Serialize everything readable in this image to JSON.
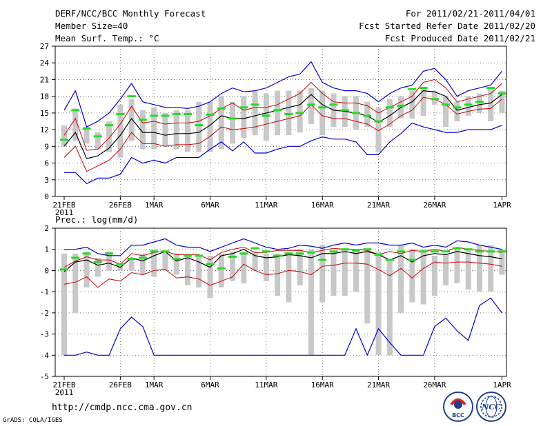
{
  "header": {
    "title": "DERF/NCC/BCC Monthly Forecast",
    "member_size": "Member Size=40",
    "period": "For 2011/02/21-2011/04/01",
    "started": "Fcst Started Refer Date 2011/02/20",
    "produced": "Fcst Produced Date 2011/02/21"
  },
  "footer": {
    "url": "http://cmdp.ncc.cma.gov.cn",
    "grads": "GrADS: COLA/IGES",
    "logo_left_text": "BCC",
    "logo_right_text": "NCC"
  },
  "colors": {
    "max_min": "#0000cc",
    "spread": "#cc0000",
    "mean": "#000000",
    "median": "#22dd22",
    "box": "#c8c8c8"
  },
  "chart_data": [
    {
      "type": "line",
      "title": "Mean Surf. Temp.: °C",
      "ylim": [
        0,
        27
      ],
      "yticks": [
        "0",
        "3",
        "6",
        "9",
        "12",
        "15",
        "18",
        "21",
        "24",
        "27"
      ],
      "x": [
        1,
        2,
        3,
        4,
        5,
        6,
        7,
        8,
        9,
        10,
        11,
        12,
        13,
        14,
        15,
        16,
        17,
        18,
        19,
        20,
        21,
        22,
        23,
        24,
        25,
        26,
        27,
        28,
        29,
        30,
        31,
        32,
        33,
        34,
        35,
        36,
        37,
        38,
        39,
        40
      ],
      "xtick_labels": [
        {
          "day": 1,
          "label": "21FEB",
          "sub": "2011"
        },
        {
          "day": 6,
          "label": "26FEB"
        },
        {
          "day": 9,
          "label": "1MAR"
        },
        {
          "day": 14,
          "label": "6MAR"
        },
        {
          "day": 19,
          "label": "11MAR"
        },
        {
          "day": 24,
          "label": "16MAR"
        },
        {
          "day": 29,
          "label": "21MAR"
        },
        {
          "day": 34,
          "label": "26MAR"
        },
        {
          "day": 40,
          "label": "1APR"
        }
      ],
      "series": [
        {
          "name": "max",
          "values": [
            15.5,
            19,
            12.5,
            13.5,
            15,
            17.5,
            20.3,
            17,
            16.5,
            16,
            16,
            15.8,
            16.2,
            17,
            18.5,
            19.5,
            18.8,
            19,
            19.5,
            20.5,
            21.5,
            22,
            24.2,
            20.5,
            19.5,
            19,
            19,
            18.5,
            17,
            18.5,
            19.5,
            20,
            22.5,
            23,
            21,
            18,
            19,
            19.5,
            20,
            22.5
          ]
        },
        {
          "name": "mean_plus_sd",
          "values": [
            11,
            14,
            8.3,
            8.5,
            10.5,
            13,
            16.2,
            13.2,
            13.5,
            13,
            13.2,
            13.2,
            13.5,
            14.5,
            15.8,
            16.8,
            15.5,
            16,
            16,
            16.5,
            17.5,
            18.5,
            20.5,
            18.5,
            17,
            16.8,
            16.8,
            16.3,
            15,
            16,
            17,
            18,
            20.5,
            21,
            19.5,
            17,
            17.5,
            18,
            18.5,
            20.3
          ]
        },
        {
          "name": "mean",
          "values": [
            9,
            11.5,
            6.8,
            7.3,
            8.7,
            11,
            14,
            11.5,
            11.5,
            11,
            11.3,
            11.3,
            11.5,
            12.8,
            14.5,
            14,
            14,
            14.5,
            15,
            15.5,
            16,
            16.5,
            18.3,
            16.5,
            15.5,
            15.3,
            15,
            14.5,
            13.3,
            14.5,
            16,
            17,
            19,
            18.8,
            18,
            15.5,
            16,
            16.5,
            16.8,
            18.3
          ]
        },
        {
          "name": "mean_minus_sd",
          "values": [
            7,
            9,
            4.5,
            5.5,
            6.5,
            8.5,
            11.5,
            9.5,
            9.5,
            9,
            9.3,
            9.3,
            9.5,
            10.8,
            12.5,
            12,
            12.2,
            12.5,
            13,
            13.5,
            14,
            14.5,
            16.5,
            14.5,
            14,
            14,
            13.5,
            13,
            11.8,
            13,
            14.5,
            15.5,
            17.8,
            17.5,
            16.5,
            14.8,
            15.3,
            15.7,
            15.8,
            17.5
          ]
        },
        {
          "name": "min",
          "values": [
            4.3,
            4.3,
            2.3,
            3.3,
            3.3,
            4,
            7,
            6,
            6.5,
            6,
            7,
            7,
            7,
            8.5,
            9.8,
            8.2,
            9.8,
            7.8,
            7.8,
            8.5,
            9,
            9,
            10,
            10.7,
            10.3,
            10.3,
            9.8,
            7.5,
            7.5,
            9.8,
            11.3,
            13.2,
            12.5,
            12,
            11.5,
            11.5,
            12,
            12,
            12,
            12.8
          ]
        },
        {
          "name": "median",
          "values": [
            10.2,
            15.5,
            12.2,
            10.8,
            12.8,
            14.8,
            18,
            13.8,
            14.5,
            14.5,
            14.8,
            14.8,
            12.8,
            14.7,
            15.8,
            14,
            16,
            16.5,
            14.5,
            15.5,
            14.8,
            15,
            16.5,
            16,
            16.5,
            15.5,
            15,
            14.5,
            13.5,
            16,
            16.3,
            19.3,
            19.5,
            17.5,
            16.5,
            16,
            16.5,
            17,
            19.5,
            18.5
          ]
        },
        {
          "name": "box_hi",
          "values": [
            12.8,
            15.8,
            12.5,
            11.5,
            13.5,
            16.5,
            17.5,
            15.5,
            16,
            15,
            15.5,
            15.5,
            17,
            17,
            18,
            17,
            18,
            19,
            18.5,
            19,
            19,
            19,
            19.5,
            19,
            18.5,
            18,
            18,
            17,
            16,
            17.5,
            18,
            19,
            19.5,
            19,
            18,
            17,
            18,
            18.5,
            19.5,
            19
          ]
        },
        {
          "name": "box_lo",
          "values": [
            9,
            10,
            9.5,
            8.5,
            8,
            7,
            10,
            8.5,
            8.5,
            9,
            8.5,
            8,
            8,
            8,
            8.5,
            9.5,
            10.5,
            11,
            10,
            11,
            11,
            11.5,
            13,
            11,
            12.5,
            12.5,
            12,
            12.5,
            8,
            12.5,
            14,
            14,
            14.5,
            16.5,
            12.5,
            13.5,
            14.5,
            15,
            13.5,
            15
          ]
        }
      ]
    },
    {
      "type": "line",
      "title": "Prec.: log(mm/d)",
      "ylim": [
        -5,
        2
      ],
      "yticks": [
        "-5",
        "-4",
        "-3",
        "-2",
        "-1",
        "0",
        "1",
        "2"
      ],
      "x": [
        1,
        2,
        3,
        4,
        5,
        6,
        7,
        8,
        9,
        10,
        11,
        12,
        13,
        14,
        15,
        16,
        17,
        18,
        19,
        20,
        21,
        22,
        23,
        24,
        25,
        26,
        27,
        28,
        29,
        30,
        31,
        32,
        33,
        34,
        35,
        36,
        37,
        38,
        39,
        40
      ],
      "xtick_labels": [
        {
          "day": 1,
          "label": "21FEB",
          "sub": "2011"
        },
        {
          "day": 6,
          "label": "26FEB"
        },
        {
          "day": 9,
          "label": "1MAR"
        },
        {
          "day": 14,
          "label": "6MAR"
        },
        {
          "day": 19,
          "label": "11MAR"
        },
        {
          "day": 24,
          "label": "16MAR"
        },
        {
          "day": 29,
          "label": "21MAR"
        },
        {
          "day": 34,
          "label": "26MAR"
        },
        {
          "day": 40,
          "label": "1APR"
        }
      ],
      "series": [
        {
          "name": "max",
          "values": [
            1,
            1,
            1.1,
            0.8,
            0.7,
            0.7,
            1.2,
            1.2,
            1.35,
            1.5,
            1.2,
            1.1,
            1.1,
            0.9,
            1.1,
            1.3,
            1.5,
            1.3,
            1.1,
            1,
            1.05,
            1.2,
            1.15,
            1.05,
            1.2,
            1.3,
            1.2,
            1.3,
            1.3,
            1.2,
            1.2,
            1.3,
            1.1,
            1.2,
            1.1,
            1.4,
            1.35,
            1.2,
            1.1,
            1
          ]
        },
        {
          "name": "mean_plus_sd",
          "values": [
            0.15,
            0.45,
            0.65,
            0.5,
            0.5,
            0.3,
            0.8,
            0.7,
            0.85,
            0.9,
            0.75,
            0.75,
            0.75,
            0.5,
            0.85,
            1,
            1.1,
            0.85,
            0.85,
            0.95,
            0.95,
            0.95,
            0.85,
            0.95,
            1.05,
            1,
            1,
            0.95,
            0.75,
            0.9,
            0.8,
            0.95,
            0.9,
            1,
            0.9,
            1.1,
            1,
            0.95,
            0.9,
            0.85
          ]
        },
        {
          "name": "mean",
          "values": [
            -0.05,
            0.4,
            0.5,
            0.25,
            0.35,
            0.15,
            0.6,
            0.45,
            0.7,
            0.9,
            0.45,
            0.6,
            0.4,
            0.15,
            0.7,
            0.8,
            1,
            0.7,
            0.6,
            0.65,
            0.75,
            0.7,
            0.6,
            0.8,
            0.8,
            0.9,
            0.8,
            0.9,
            0.75,
            0.5,
            0.7,
            0.4,
            0.7,
            0.8,
            0.75,
            0.9,
            0.8,
            0.7,
            0.65,
            0.55
          ]
        },
        {
          "name": "mean_minus_sd",
          "values": [
            -0.65,
            -0.55,
            -0.3,
            -0.8,
            -0.4,
            -0.5,
            -0.1,
            -0.2,
            0,
            0.05,
            -0.35,
            -0.3,
            -0.4,
            -0.7,
            -0.5,
            -0.3,
            0.3,
            0,
            -0.2,
            -0.15,
            0,
            -0.05,
            -0.2,
            0.2,
            0.25,
            0.35,
            0.35,
            0.3,
            0.05,
            -0.25,
            0.1,
            -0.35,
            0.1,
            0.4,
            0.35,
            0.4,
            0.4,
            0.35,
            0.3,
            0.2
          ]
        },
        {
          "name": "min",
          "values": [
            -4,
            -4,
            -3.85,
            -4,
            -4,
            -2.75,
            -2.2,
            -2.65,
            -4,
            -4,
            -4,
            -4,
            -4,
            -4,
            -4,
            -4,
            -4,
            -4,
            -4,
            -4,
            -4,
            -4,
            -4,
            -4,
            -4,
            -4,
            -2.75,
            -4,
            -2.75,
            -3.4,
            -4,
            -4,
            -4,
            -2.65,
            -2.25,
            -2.85,
            -3.3,
            -1.65,
            -1.3,
            -2
          ]
        },
        {
          "name": "median",
          "values": [
            0.05,
            0.6,
            0.8,
            0.4,
            0.8,
            0.3,
            0.55,
            0.6,
            0.9,
            0.9,
            0.55,
            0.7,
            0.7,
            0.3,
            0.1,
            0.65,
            0.8,
            1.05,
            0.9,
            0.7,
            0.8,
            0.8,
            0.85,
            0.5,
            0.9,
            1,
            0.95,
            1,
            0.75,
            0.5,
            0.9,
            0.5,
            0.9,
            0.9,
            0.9,
            1.05,
            1,
            0.9,
            0.9,
            0.9
          ]
        },
        {
          "name": "box_hi",
          "values": [
            0.8,
            0.8,
            0.9,
            0.6,
            0.9,
            0.3,
            0.6,
            0.8,
            1,
            0.95,
            0.8,
            0.8,
            0.7,
            0.7,
            0.8,
            0.9,
            0.9,
            0.9,
            0.8,
            0.8,
            0.9,
            1,
            1,
            1.2,
            0.9,
            1,
            1,
            1,
            0.9,
            0.5,
            1.2,
            1,
            1,
            0.7,
            0.8,
            1,
            1,
            1.2,
            1.2,
            1
          ]
        },
        {
          "name": "box_lo",
          "values": [
            -4,
            -2,
            -0.8,
            -0.3,
            0,
            0,
            0,
            -0.2,
            -0.3,
            0,
            -0.2,
            -0.7,
            -0.8,
            -1.3,
            -0.8,
            -0.5,
            -0.6,
            0,
            -0.5,
            -1.2,
            -1.5,
            -0.7,
            -4,
            -1.5,
            -1.2,
            -1.2,
            -1,
            -2.5,
            -4,
            -4,
            -2,
            -1.5,
            -1.6,
            -1.2,
            -0.7,
            -0.6,
            -0.9,
            -1,
            -1,
            -0.2
          ]
        }
      ]
    }
  ]
}
